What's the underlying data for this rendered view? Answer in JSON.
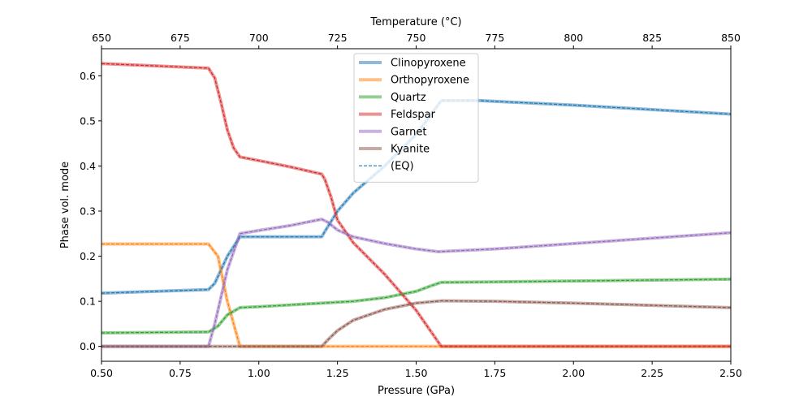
{
  "chart_data": {
    "type": "line",
    "xlabel": "Pressure (GPa)",
    "ylabel": "Phase vol. mode",
    "top_xlabel": "Temperature (°C)",
    "xlim": [
      0.5,
      2.5
    ],
    "ylim": [
      -0.033,
      0.66
    ],
    "top_xlim": [
      650,
      850
    ],
    "x_ticks": [
      0.5,
      0.75,
      1.0,
      1.25,
      1.5,
      1.75,
      2.0,
      2.25,
      2.5
    ],
    "x_tick_labels": [
      "0.50",
      "0.75",
      "1.00",
      "1.25",
      "1.50",
      "1.75",
      "2.00",
      "2.25",
      "2.50"
    ],
    "y_ticks": [
      0.0,
      0.1,
      0.2,
      0.3,
      0.4,
      0.5,
      0.6
    ],
    "y_tick_labels": [
      "0.0",
      "0.1",
      "0.2",
      "0.3",
      "0.4",
      "0.5",
      "0.6"
    ],
    "top_ticks": [
      650,
      675,
      700,
      725,
      750,
      775,
      800,
      825,
      850
    ],
    "top_tick_labels": [
      "650",
      "675",
      "700",
      "725",
      "750",
      "775",
      "800",
      "825",
      "850"
    ],
    "grid": false,
    "legend_position": "top-center",
    "series": [
      {
        "name": "Clinopyroxene",
        "color": "#1f77b4",
        "x": [
          0.5,
          0.84,
          0.86,
          0.9,
          0.94,
          1.0,
          1.1,
          1.2,
          1.21,
          1.25,
          1.3,
          1.4,
          1.5,
          1.58,
          1.7,
          2.0,
          2.25,
          2.5
        ],
        "y": [
          0.118,
          0.126,
          0.14,
          0.2,
          0.243,
          0.243,
          0.243,
          0.243,
          0.255,
          0.3,
          0.34,
          0.4,
          0.47,
          0.545,
          0.545,
          0.535,
          0.525,
          0.515
        ]
      },
      {
        "name": "Orthopyroxene",
        "color": "#ff7f0e",
        "x": [
          0.5,
          0.84,
          0.87,
          0.9,
          0.94,
          1.0,
          1.5,
          2.0,
          2.5
        ],
        "y": [
          0.227,
          0.227,
          0.2,
          0.1,
          0.0,
          0.0,
          0.0,
          0.0,
          0.0
        ]
      },
      {
        "name": "Quartz",
        "color": "#2ca02c",
        "x": [
          0.5,
          0.84,
          0.87,
          0.9,
          0.94,
          1.0,
          1.1,
          1.2,
          1.3,
          1.4,
          1.5,
          1.55,
          1.58,
          1.75,
          2.0,
          2.25,
          2.5
        ],
        "y": [
          0.03,
          0.032,
          0.045,
          0.07,
          0.086,
          0.088,
          0.092,
          0.096,
          0.1,
          0.108,
          0.122,
          0.135,
          0.142,
          0.143,
          0.145,
          0.147,
          0.149
        ]
      },
      {
        "name": "Feldspar",
        "color": "#d62728",
        "x": [
          0.5,
          0.84,
          0.86,
          0.88,
          0.9,
          0.92,
          0.94,
          1.0,
          1.1,
          1.2,
          1.21,
          1.23,
          1.25,
          1.3,
          1.4,
          1.5,
          1.55,
          1.58,
          2.0,
          2.5
        ],
        "y": [
          0.627,
          0.617,
          0.595,
          0.54,
          0.48,
          0.44,
          0.42,
          0.412,
          0.398,
          0.382,
          0.37,
          0.33,
          0.28,
          0.23,
          0.16,
          0.08,
          0.03,
          0.0,
          0.0,
          0.0
        ]
      },
      {
        "name": "Garnet",
        "color": "#9467bd",
        "x": [
          0.5,
          0.84,
          0.86,
          0.9,
          0.94,
          1.0,
          1.1,
          1.2,
          1.22,
          1.25,
          1.3,
          1.4,
          1.5,
          1.57,
          1.75,
          2.0,
          2.25,
          2.5
        ],
        "y": [
          0.0,
          0.0,
          0.05,
          0.17,
          0.25,
          0.257,
          0.268,
          0.282,
          0.275,
          0.258,
          0.243,
          0.228,
          0.216,
          0.21,
          0.216,
          0.228,
          0.24,
          0.252
        ]
      },
      {
        "name": "Kyanite",
        "color": "#8c564b",
        "x": [
          0.5,
          1.0,
          1.2,
          1.22,
          1.25,
          1.3,
          1.4,
          1.5,
          1.58,
          1.75,
          2.0,
          2.25,
          2.5
        ],
        "y": [
          0.0,
          0.0,
          0.0,
          0.015,
          0.035,
          0.058,
          0.082,
          0.096,
          0.101,
          0.1,
          0.096,
          0.091,
          0.086
        ]
      }
    ],
    "overlay_legend_label": "(EQ)"
  }
}
